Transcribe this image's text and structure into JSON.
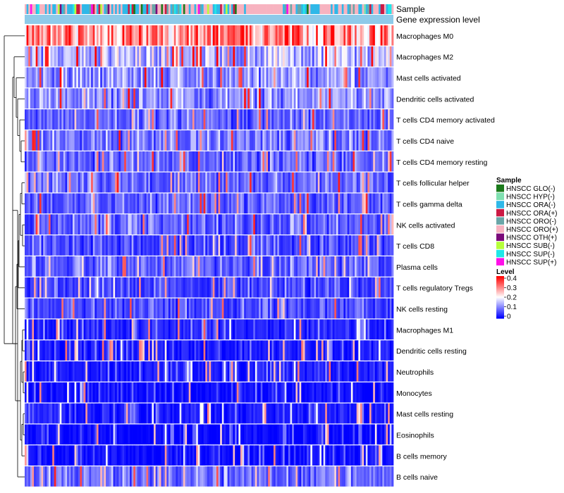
{
  "chart_data": {
    "type": "heatmap",
    "title": "",
    "columns": 200,
    "annotation_rows": [
      "Sample",
      "Gene expression level"
    ],
    "rows": [
      {
        "name": "Macrophages M0",
        "mean": 0.3
      },
      {
        "name": "Macrophages M2",
        "mean": 0.14
      },
      {
        "name": "Mast cells activated",
        "mean": 0.11
      },
      {
        "name": "Dendritic cells activated",
        "mean": 0.1
      },
      {
        "name": "T cells CD4 memory activated",
        "mean": 0.07
      },
      {
        "name": "T cells CD4 naive",
        "mean": 0.09
      },
      {
        "name": "T cells CD4 memory resting",
        "mean": 0.07
      },
      {
        "name": "T cells follicular helper",
        "mean": 0.08
      },
      {
        "name": "T cells gamma delta",
        "mean": 0.07
      },
      {
        "name": "NK cells activated",
        "mean": 0.07
      },
      {
        "name": "T cells CD8",
        "mean": 0.05
      },
      {
        "name": "Plasma cells",
        "mean": 0.07
      },
      {
        "name": "T cells regulatory  Tregs",
        "mean": 0.05
      },
      {
        "name": "NK cells resting",
        "mean": 0.05
      },
      {
        "name": "Macrophages M1",
        "mean": 0.03
      },
      {
        "name": "Dendritic cells resting",
        "mean": 0.02
      },
      {
        "name": "Neutrophils",
        "mean": 0.02
      },
      {
        "name": "Monocytes",
        "mean": 0.01
      },
      {
        "name": "Mast cells resting",
        "mean": 0.02
      },
      {
        "name": "Eosinophils",
        "mean": 0.005
      },
      {
        "name": "B cells memory",
        "mean": 0.01
      },
      {
        "name": "B cells naive",
        "mean": 0.08
      }
    ],
    "sample_legend": {
      "title": "Sample",
      "items": [
        {
          "label": "HNSCC GLO(-)",
          "color": "#1b7a1b"
        },
        {
          "label": "HNSCC HYP(-)",
          "color": "#7fe0b0"
        },
        {
          "label": "HNSCC ORA(-)",
          "color": "#2fb8e8"
        },
        {
          "label": "HNSCC ORA(+)",
          "color": "#cc1a44"
        },
        {
          "label": "HNSCC ORO(-)",
          "color": "#6aa6a8"
        },
        {
          "label": "HNSCC ORO(+)",
          "color": "#f7b3c0"
        },
        {
          "label": "HNSCC OTH(+)",
          "color": "#7a0a7a"
        },
        {
          "label": "HNSCC SUB(-)",
          "color": "#b6ff3a"
        },
        {
          "label": "HNSCC SUP(-)",
          "color": "#20e8e8"
        },
        {
          "label": "HNSCC SUP(+)",
          "color": "#ff10e8"
        }
      ]
    },
    "level_legend": {
      "title": "Level",
      "ticks": [
        "0.4",
        "0.3",
        "0.2",
        "0.1",
        "0"
      ],
      "range": [
        0,
        0.4
      ],
      "colors": [
        "#0000ff",
        "#ffffff",
        "#ff0000"
      ]
    },
    "gene_expression_color": "#8ecae9",
    "heat_colors": {
      "low": "#0000ff",
      "mid": "#ffffff",
      "high": "#ff0000"
    }
  }
}
